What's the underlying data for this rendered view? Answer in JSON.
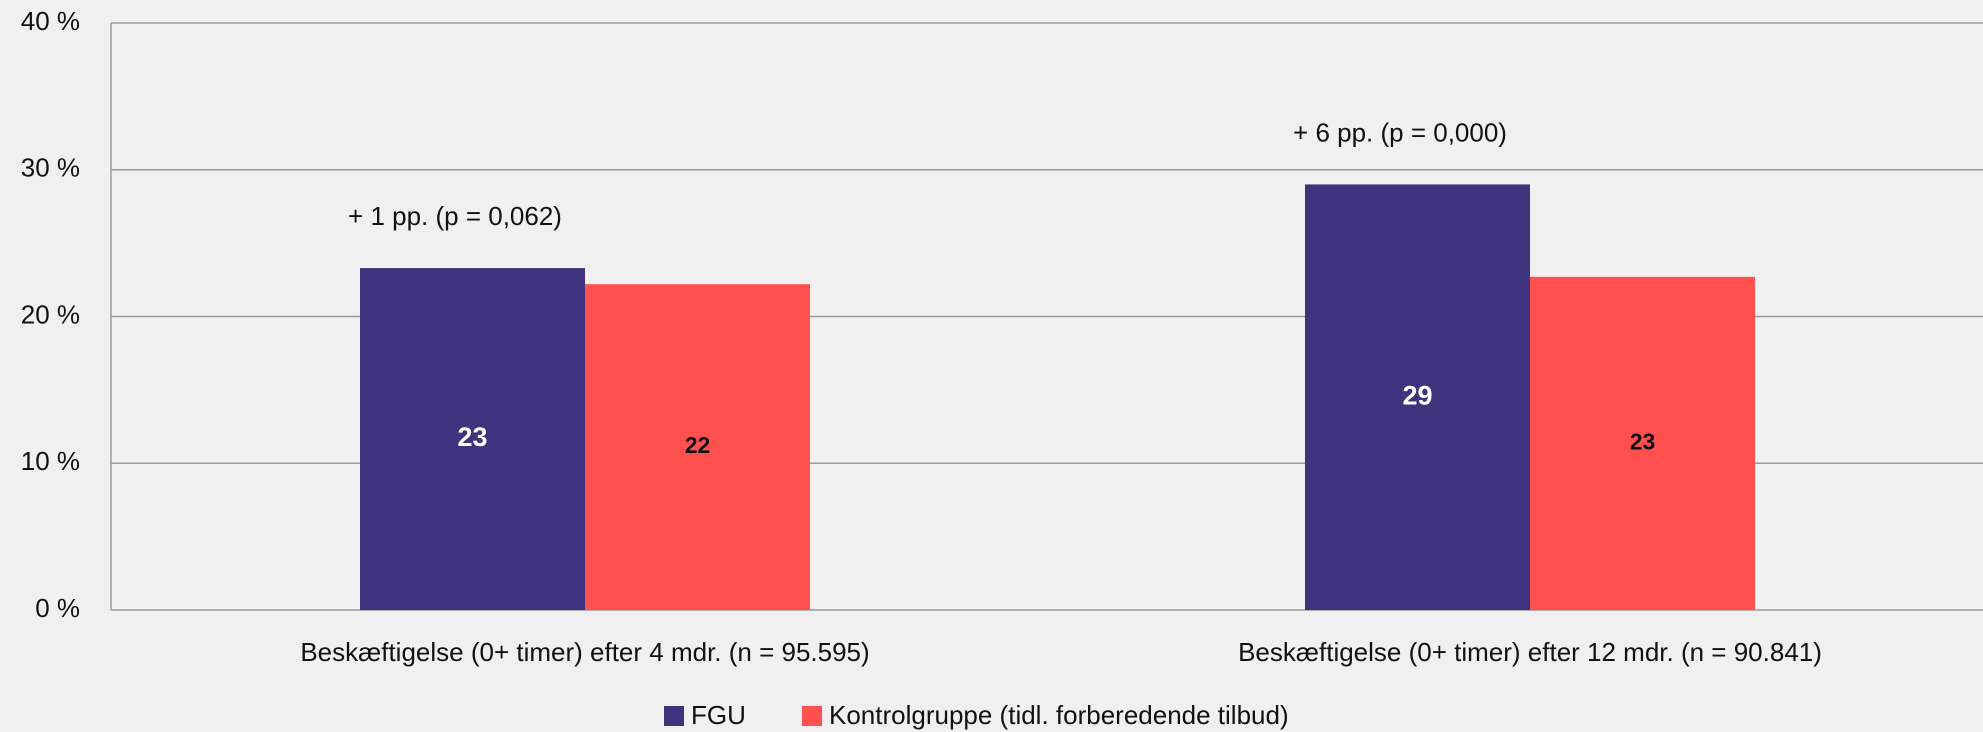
{
  "chart_data": {
    "type": "bar",
    "categories": [
      "Beskæftigelse (0+ timer) efter 4 mdr. (n = 95.595)",
      "Beskæftigelse (0+ timer) efter 12 mdr. (n = 90.841)"
    ],
    "series": [
      {
        "name": "FGU",
        "color": "#40337d",
        "values": [
          23.3,
          29.0
        ],
        "value_labels": [
          "23",
          "29"
        ]
      },
      {
        "name": "Kontrolgruppe (tidl. forberedende tilbud)",
        "color": "#ff4f4f",
        "values": [
          22.2,
          22.7
        ],
        "value_labels": [
          "22",
          "23"
        ]
      }
    ],
    "annotations": [
      "+ 1 pp. (p = 0,062)",
      "+ 6 pp.  (p = 0,000)"
    ],
    "ylim": [
      0,
      40
    ],
    "yticks": [
      {
        "value": 0,
        "label": "0 %"
      },
      {
        "value": 10,
        "label": "10 %"
      },
      {
        "value": 20,
        "label": "20 %"
      },
      {
        "value": 30,
        "label": "30 %"
      },
      {
        "value": 40,
        "label": "40 %"
      }
    ],
    "grid": true
  }
}
